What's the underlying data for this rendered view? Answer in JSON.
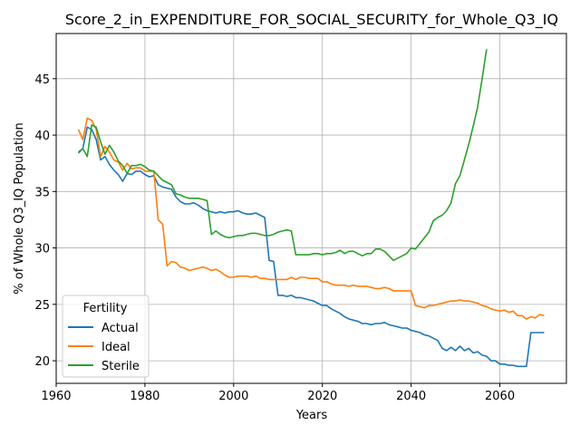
{
  "chart_data": {
    "type": "line",
    "title": "Score_2_in_EXPENDITURE_FOR_SOCIAL_SECURITY_for_Whole_Q3_IQ",
    "xlabel": "Years",
    "ylabel": "% of Whole Q3_IQ Population",
    "xlim": [
      1960,
      2075
    ],
    "ylim": [
      18,
      49
    ],
    "xticks": [
      1960,
      1980,
      2000,
      2020,
      2040,
      2060
    ],
    "yticks": [
      20,
      25,
      30,
      35,
      40,
      45
    ],
    "grid": true,
    "legend": {
      "title": "Fertility",
      "placement": "lower-left"
    },
    "series": [
      {
        "name": "Actual",
        "color": "#1f77b4",
        "points": [
          [
            1965,
            38.4
          ],
          [
            1966,
            38.8
          ],
          [
            1967,
            40.7
          ],
          [
            1968,
            40.5
          ],
          [
            1969,
            39.6
          ],
          [
            1970,
            37.8
          ],
          [
            1971,
            38.1
          ],
          [
            1972,
            37.4
          ],
          [
            1973,
            36.9
          ],
          [
            1974,
            36.5
          ],
          [
            1975,
            35.9
          ],
          [
            1976,
            36.6
          ],
          [
            1977,
            36.5
          ],
          [
            1978,
            36.8
          ],
          [
            1979,
            36.8
          ],
          [
            1980,
            36.5
          ],
          [
            1981,
            36.3
          ],
          [
            1982,
            36.4
          ],
          [
            1983,
            35.6
          ],
          [
            1984,
            35.4
          ],
          [
            1985,
            35.3
          ],
          [
            1986,
            35.2
          ],
          [
            1987,
            34.5
          ],
          [
            1988,
            34.1
          ],
          [
            1989,
            33.9
          ],
          [
            1990,
            33.9
          ],
          [
            1991,
            34.0
          ],
          [
            1992,
            33.8
          ],
          [
            1993,
            33.5
          ],
          [
            1994,
            33.3
          ],
          [
            1995,
            33.2
          ],
          [
            1996,
            33.1
          ],
          [
            1997,
            33.2
          ],
          [
            1998,
            33.1
          ],
          [
            1999,
            33.2
          ],
          [
            2000,
            33.2
          ],
          [
            2001,
            33.3
          ],
          [
            2002,
            33.1
          ],
          [
            2003,
            33.0
          ],
          [
            2004,
            33.0
          ],
          [
            2005,
            33.1
          ],
          [
            2006,
            32.9
          ],
          [
            2007,
            32.7
          ],
          [
            2008,
            28.9
          ],
          [
            2009,
            28.8
          ],
          [
            2010,
            25.8
          ],
          [
            2011,
            25.8
          ],
          [
            2012,
            25.7
          ],
          [
            2013,
            25.8
          ],
          [
            2014,
            25.6
          ],
          [
            2015,
            25.6
          ],
          [
            2016,
            25.5
          ],
          [
            2017,
            25.4
          ],
          [
            2018,
            25.3
          ],
          [
            2019,
            25.1
          ],
          [
            2020,
            24.9
          ],
          [
            2021,
            24.9
          ],
          [
            2022,
            24.6
          ],
          [
            2023,
            24.4
          ],
          [
            2024,
            24.2
          ],
          [
            2025,
            23.9
          ],
          [
            2026,
            23.7
          ],
          [
            2027,
            23.6
          ],
          [
            2028,
            23.5
          ],
          [
            2029,
            23.3
          ],
          [
            2030,
            23.3
          ],
          [
            2031,
            23.2
          ],
          [
            2032,
            23.3
          ],
          [
            2033,
            23.3
          ],
          [
            2034,
            23.4
          ],
          [
            2035,
            23.2
          ],
          [
            2036,
            23.1
          ],
          [
            2037,
            23.0
          ],
          [
            2038,
            22.9
          ],
          [
            2039,
            22.9
          ],
          [
            2040,
            22.7
          ],
          [
            2041,
            22.6
          ],
          [
            2042,
            22.5
          ],
          [
            2043,
            22.3
          ],
          [
            2044,
            22.2
          ],
          [
            2045,
            22.0
          ],
          [
            2046,
            21.8
          ],
          [
            2047,
            21.1
          ],
          [
            2048,
            20.9
          ],
          [
            2049,
            21.2
          ],
          [
            2050,
            20.9
          ],
          [
            2051,
            21.3
          ],
          [
            2052,
            20.9
          ],
          [
            2053,
            21.1
          ],
          [
            2054,
            20.7
          ],
          [
            2055,
            20.8
          ],
          [
            2056,
            20.5
          ],
          [
            2057,
            20.4
          ],
          [
            2058,
            20.0
          ],
          [
            2059,
            20.0
          ],
          [
            2060,
            19.7
          ],
          [
            2061,
            19.7
          ],
          [
            2062,
            19.6
          ],
          [
            2063,
            19.6
          ],
          [
            2064,
            19.5
          ],
          [
            2065,
            19.5
          ],
          [
            2066,
            19.5
          ],
          [
            2067,
            22.5
          ],
          [
            2068,
            22.5
          ],
          [
            2069,
            22.5
          ],
          [
            2070,
            22.5
          ]
        ]
      },
      {
        "name": "Ideal",
        "color": "#ff7f0e",
        "points": [
          [
            1965,
            40.5
          ],
          [
            1966,
            39.6
          ],
          [
            1967,
            41.5
          ],
          [
            1968,
            41.3
          ],
          [
            1969,
            40.5
          ],
          [
            1970,
            38.1
          ],
          [
            1971,
            39.0
          ],
          [
            1972,
            38.5
          ],
          [
            1973,
            37.8
          ],
          [
            1974,
            37.6
          ],
          [
            1975,
            36.9
          ],
          [
            1976,
            37.5
          ],
          [
            1977,
            37.0
          ],
          [
            1978,
            37.1
          ],
          [
            1979,
            37.1
          ],
          [
            1980,
            36.8
          ],
          [
            1981,
            36.8
          ],
          [
            1982,
            36.8
          ],
          [
            1983,
            32.5
          ],
          [
            1984,
            32.1
          ],
          [
            1985,
            28.4
          ],
          [
            1986,
            28.8
          ],
          [
            1987,
            28.7
          ],
          [
            1988,
            28.3
          ],
          [
            1989,
            28.2
          ],
          [
            1990,
            28.0
          ],
          [
            1991,
            28.1
          ],
          [
            1992,
            28.2
          ],
          [
            1993,
            28.3
          ],
          [
            1994,
            28.2
          ],
          [
            1995,
            28.0
          ],
          [
            1996,
            28.1
          ],
          [
            1997,
            27.9
          ],
          [
            1998,
            27.6
          ],
          [
            1999,
            27.4
          ],
          [
            2000,
            27.4
          ],
          [
            2001,
            27.5
          ],
          [
            2002,
            27.5
          ],
          [
            2003,
            27.5
          ],
          [
            2004,
            27.4
          ],
          [
            2005,
            27.5
          ],
          [
            2006,
            27.3
          ],
          [
            2007,
            27.3
          ],
          [
            2008,
            27.2
          ],
          [
            2009,
            27.2
          ],
          [
            2010,
            27.2
          ],
          [
            2011,
            27.2
          ],
          [
            2012,
            27.2
          ],
          [
            2013,
            27.4
          ],
          [
            2014,
            27.2
          ],
          [
            2015,
            27.4
          ],
          [
            2016,
            27.4
          ],
          [
            2017,
            27.3
          ],
          [
            2018,
            27.3
          ],
          [
            2019,
            27.3
          ],
          [
            2020,
            27.0
          ],
          [
            2021,
            27.0
          ],
          [
            2022,
            26.8
          ],
          [
            2023,
            26.7
          ],
          [
            2024,
            26.7
          ],
          [
            2025,
            26.7
          ],
          [
            2026,
            26.6
          ],
          [
            2027,
            26.7
          ],
          [
            2028,
            26.6
          ],
          [
            2029,
            26.6
          ],
          [
            2030,
            26.6
          ],
          [
            2031,
            26.5
          ],
          [
            2032,
            26.4
          ],
          [
            2033,
            26.4
          ],
          [
            2034,
            26.5
          ],
          [
            2035,
            26.4
          ],
          [
            2036,
            26.2
          ],
          [
            2037,
            26.2
          ],
          [
            2038,
            26.2
          ],
          [
            2039,
            26.2
          ],
          [
            2040,
            26.2
          ],
          [
            2041,
            24.9
          ],
          [
            2042,
            24.8
          ],
          [
            2043,
            24.7
          ],
          [
            2044,
            24.9
          ],
          [
            2045,
            24.9
          ],
          [
            2046,
            25.0
          ],
          [
            2047,
            25.1
          ],
          [
            2048,
            25.2
          ],
          [
            2049,
            25.3
          ],
          [
            2050,
            25.3
          ],
          [
            2051,
            25.4
          ],
          [
            2052,
            25.3
          ],
          [
            2053,
            25.3
          ],
          [
            2054,
            25.2
          ],
          [
            2055,
            25.1
          ],
          [
            2056,
            24.9
          ],
          [
            2057,
            24.8
          ],
          [
            2058,
            24.6
          ],
          [
            2059,
            24.5
          ],
          [
            2060,
            24.4
          ],
          [
            2061,
            24.5
          ],
          [
            2062,
            24.3
          ],
          [
            2063,
            24.4
          ],
          [
            2064,
            24.0
          ],
          [
            2065,
            24.0
          ],
          [
            2066,
            23.7
          ],
          [
            2067,
            23.9
          ],
          [
            2068,
            23.8
          ],
          [
            2069,
            24.1
          ],
          [
            2070,
            24.0
          ]
        ]
      },
      {
        "name": "Sterile",
        "color": "#2ca02c",
        "points": [
          [
            1965,
            38.5
          ],
          [
            1966,
            38.8
          ],
          [
            1967,
            38.1
          ],
          [
            1968,
            40.9
          ],
          [
            1969,
            40.7
          ],
          [
            1970,
            39.4
          ],
          [
            1971,
            38.3
          ],
          [
            1972,
            39.1
          ],
          [
            1973,
            38.5
          ],
          [
            1974,
            37.7
          ],
          [
            1975,
            37.3
          ],
          [
            1976,
            36.6
          ],
          [
            1977,
            37.3
          ],
          [
            1978,
            37.3
          ],
          [
            1979,
            37.4
          ],
          [
            1980,
            37.2
          ],
          [
            1981,
            36.9
          ],
          [
            1982,
            36.8
          ],
          [
            1983,
            36.4
          ],
          [
            1984,
            36.0
          ],
          [
            1985,
            35.8
          ],
          [
            1986,
            35.6
          ],
          [
            1987,
            34.8
          ],
          [
            1988,
            34.7
          ],
          [
            1989,
            34.5
          ],
          [
            1990,
            34.4
          ],
          [
            1991,
            34.4
          ],
          [
            1992,
            34.4
          ],
          [
            1993,
            34.3
          ],
          [
            1994,
            34.2
          ],
          [
            1995,
            31.2
          ],
          [
            1996,
            31.5
          ],
          [
            1997,
            31.2
          ],
          [
            1998,
            31.0
          ],
          [
            1999,
            30.9
          ],
          [
            2000,
            31.0
          ],
          [
            2001,
            31.1
          ],
          [
            2002,
            31.1
          ],
          [
            2003,
            31.2
          ],
          [
            2004,
            31.3
          ],
          [
            2005,
            31.3
          ],
          [
            2006,
            31.2
          ],
          [
            2007,
            31.1
          ],
          [
            2008,
            31.1
          ],
          [
            2009,
            31.2
          ],
          [
            2010,
            31.4
          ],
          [
            2011,
            31.5
          ],
          [
            2012,
            31.6
          ],
          [
            2013,
            31.5
          ],
          [
            2014,
            29.4
          ],
          [
            2015,
            29.4
          ],
          [
            2016,
            29.4
          ],
          [
            2017,
            29.4
          ],
          [
            2018,
            29.5
          ],
          [
            2019,
            29.5
          ],
          [
            2020,
            29.4
          ],
          [
            2021,
            29.5
          ],
          [
            2022,
            29.5
          ],
          [
            2023,
            29.6
          ],
          [
            2024,
            29.8
          ],
          [
            2025,
            29.5
          ],
          [
            2026,
            29.7
          ],
          [
            2027,
            29.7
          ],
          [
            2028,
            29.5
          ],
          [
            2029,
            29.3
          ],
          [
            2030,
            29.5
          ],
          [
            2031,
            29.5
          ],
          [
            2032,
            29.9
          ],
          [
            2033,
            29.9
          ],
          [
            2034,
            29.7
          ],
          [
            2035,
            29.3
          ],
          [
            2036,
            28.9
          ],
          [
            2037,
            29.1
          ],
          [
            2038,
            29.3
          ],
          [
            2039,
            29.5
          ],
          [
            2040,
            30.0
          ],
          [
            2041,
            29.9
          ],
          [
            2042,
            30.4
          ],
          [
            2043,
            30.9
          ],
          [
            2044,
            31.4
          ],
          [
            2045,
            32.4
          ],
          [
            2046,
            32.7
          ],
          [
            2047,
            32.9
          ],
          [
            2048,
            33.3
          ],
          [
            2049,
            34.0
          ],
          [
            2050,
            35.7
          ],
          [
            2051,
            36.4
          ],
          [
            2052,
            37.8
          ],
          [
            2053,
            39.2
          ],
          [
            2054,
            40.8
          ],
          [
            2055,
            42.5
          ],
          [
            2056,
            45.0
          ],
          [
            2057,
            47.6
          ]
        ]
      }
    ]
  }
}
